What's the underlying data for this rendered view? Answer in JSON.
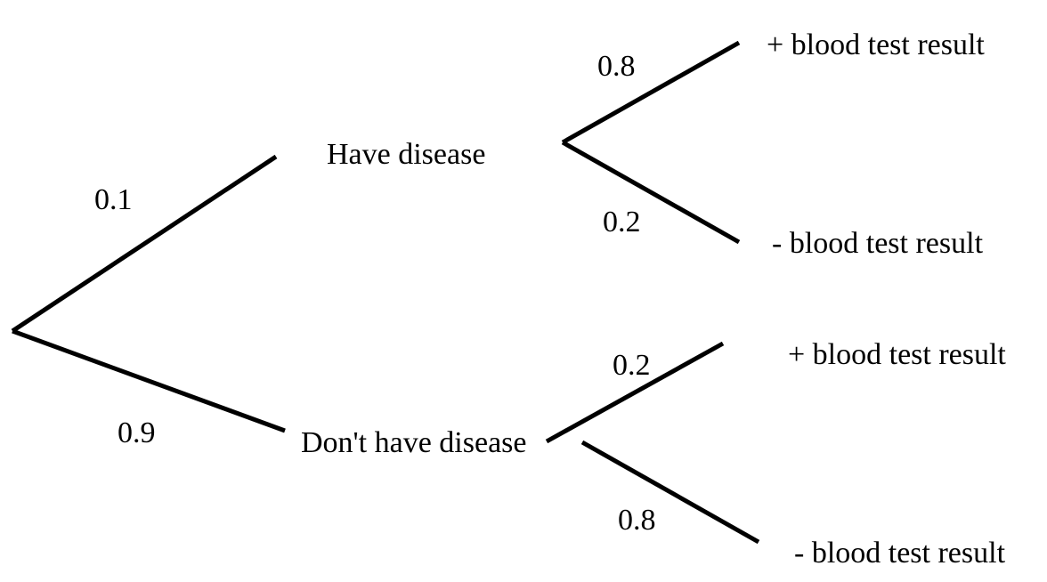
{
  "tree": {
    "first_stage": {
      "have_disease": {
        "label": "Have disease",
        "probability": "0.1",
        "outcomes": {
          "positive": {
            "label": "+ blood test result",
            "probability": "0.8"
          },
          "negative": {
            "label": "- blood test result",
            "probability": "0.2"
          }
        }
      },
      "dont_have_disease": {
        "label": "Don't have disease",
        "probability": "0.9",
        "outcomes": {
          "positive": {
            "label": "+ blood test result",
            "probability": "0.2"
          },
          "negative": {
            "label": "- blood test result",
            "probability": "0.8"
          }
        }
      }
    }
  }
}
